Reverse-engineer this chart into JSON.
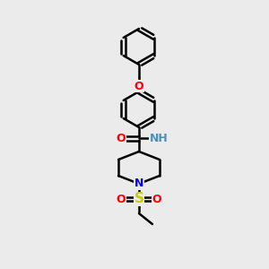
{
  "bg_color": "#ebebeb",
  "bond_color": "#000000",
  "bond_width": 1.8,
  "atom_colors": {
    "O": "#ff0000",
    "N_amide": "#4a90b8",
    "N_pip": "#0000ff",
    "S": "#cccc00",
    "C": "#000000"
  },
  "font_size_atom": 9,
  "font_size_S": 11
}
